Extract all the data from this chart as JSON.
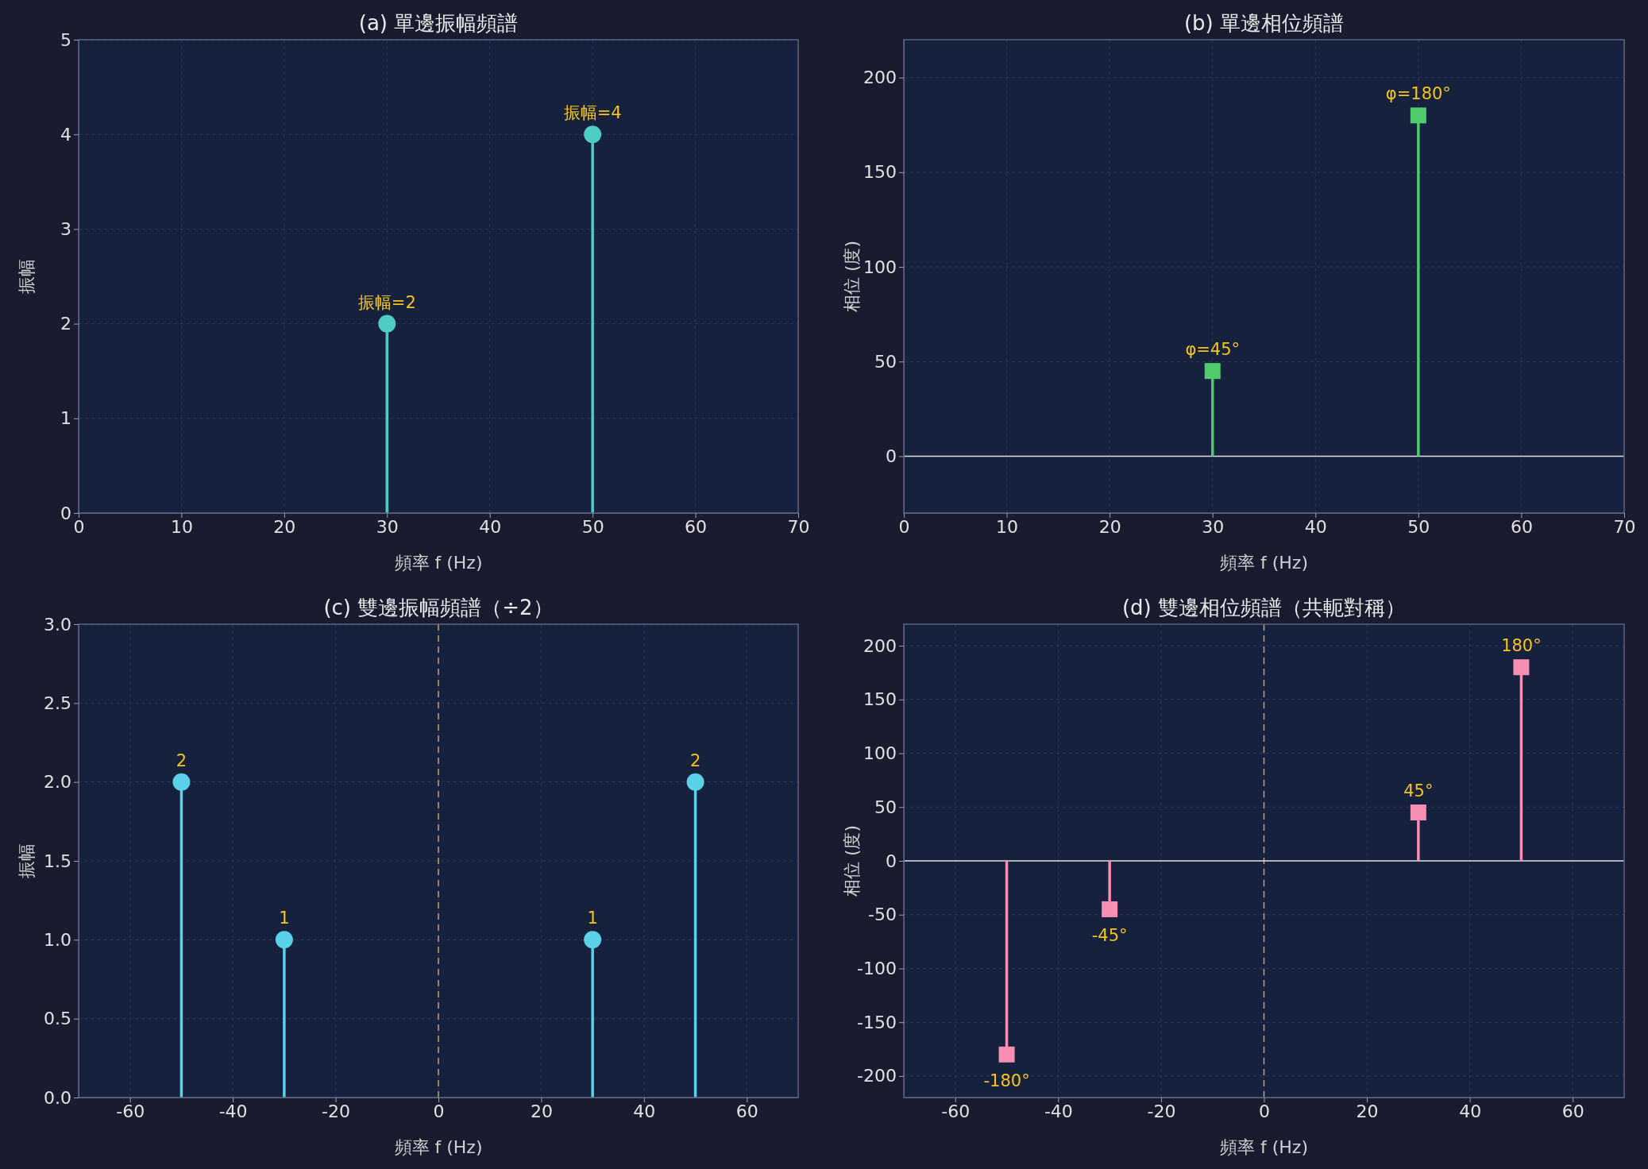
{
  "chart_data": [
    {
      "type": "lollipop",
      "title": "(a) 單邊振幅頻譜",
      "xlabel": "頻率 f (Hz)",
      "ylabel": "振幅",
      "x": [
        30,
        50
      ],
      "xlim": [
        0,
        70
      ],
      "xticks": [
        0,
        10,
        20,
        30,
        40,
        50,
        60,
        70
      ],
      "ylim": [
        0,
        5
      ],
      "yticks": [
        0,
        1,
        2,
        3,
        4,
        5
      ],
      "grid": true,
      "marker": "circle",
      "series": [
        {
          "color": "#4ecdc4",
          "values": [
            2,
            4
          ],
          "value_labels": [
            "振幅=2",
            "振幅=4"
          ]
        }
      ]
    },
    {
      "type": "lollipop",
      "title": "(b) 單邊相位頻譜",
      "xlabel": "頻率 f (Hz)",
      "ylabel": "相位 (度)",
      "x": [
        30,
        50
      ],
      "xlim": [
        0,
        70
      ],
      "xticks": [
        0,
        10,
        20,
        30,
        40,
        50,
        60,
        70
      ],
      "ylim": [
        -30,
        220
      ],
      "yticks": [
        0,
        50,
        100,
        150,
        200
      ],
      "grid": true,
      "marker": "square",
      "series": [
        {
          "color": "#4fcb6b",
          "values": [
            45,
            180
          ],
          "value_labels": [
            "φ=45°",
            "φ=180°"
          ]
        }
      ],
      "ref_lines": [
        {
          "axis": "y",
          "value": 0,
          "color": "#e0e0e0",
          "line_style": "solid"
        }
      ]
    },
    {
      "type": "lollipop",
      "title": "(c) 雙邊振幅頻譜（÷2）",
      "xlabel": "頻率 f (Hz)",
      "ylabel": "振幅",
      "x": [
        -50,
        -30,
        30,
        50
      ],
      "xlim": [
        -70,
        70
      ],
      "xticks": [
        -60,
        -40,
        -20,
        0,
        20,
        40,
        60
      ],
      "ylim": [
        0,
        3
      ],
      "yticks": [
        {
          "value": 0,
          "label": "0.0"
        },
        {
          "value": 0.5,
          "label": "0.5"
        },
        {
          "value": 1,
          "label": "1.0"
        },
        {
          "value": 1.5,
          "label": "1.5"
        },
        {
          "value": 2,
          "label": "2.0"
        },
        {
          "value": 2.5,
          "label": "2.5"
        },
        {
          "value": 3,
          "label": "3.0"
        }
      ],
      "grid": true,
      "marker": "circle",
      "data_labels": true,
      "series": [
        {
          "color": "#5ad1e8",
          "values": [
            2,
            1,
            1,
            2
          ]
        }
      ],
      "ref_lines": [
        {
          "axis": "x",
          "value": 0,
          "color": "#c8a070",
          "line_style": "dashed"
        }
      ]
    },
    {
      "type": "lollipop",
      "title": "(d) 雙邊相位頻譜（共軛對稱）",
      "xlabel": "頻率 f (Hz)",
      "ylabel": "相位 (度)",
      "x": [
        -50,
        -30,
        30,
        50
      ],
      "xlim": [
        -70,
        70
      ],
      "xticks": [
        -60,
        -40,
        -20,
        0,
        20,
        40,
        60
      ],
      "ylim": [
        -220,
        220
      ],
      "yticks": [
        -200,
        -150,
        -100,
        -50,
        0,
        50,
        100,
        150,
        200
      ],
      "grid": true,
      "marker": "square",
      "series": [
        {
          "color": "#f78fb3",
          "values": [
            -180,
            -45,
            45,
            180
          ],
          "value_labels": [
            "-180°",
            "-45°",
            "45°",
            "180°"
          ]
        }
      ],
      "ref_lines": [
        {
          "axis": "x",
          "value": 0,
          "color": "#c8a070",
          "line_style": "dashed"
        },
        {
          "axis": "y",
          "value": 0,
          "color": "#e0e0e0",
          "line_style": "solid"
        }
      ]
    }
  ]
}
